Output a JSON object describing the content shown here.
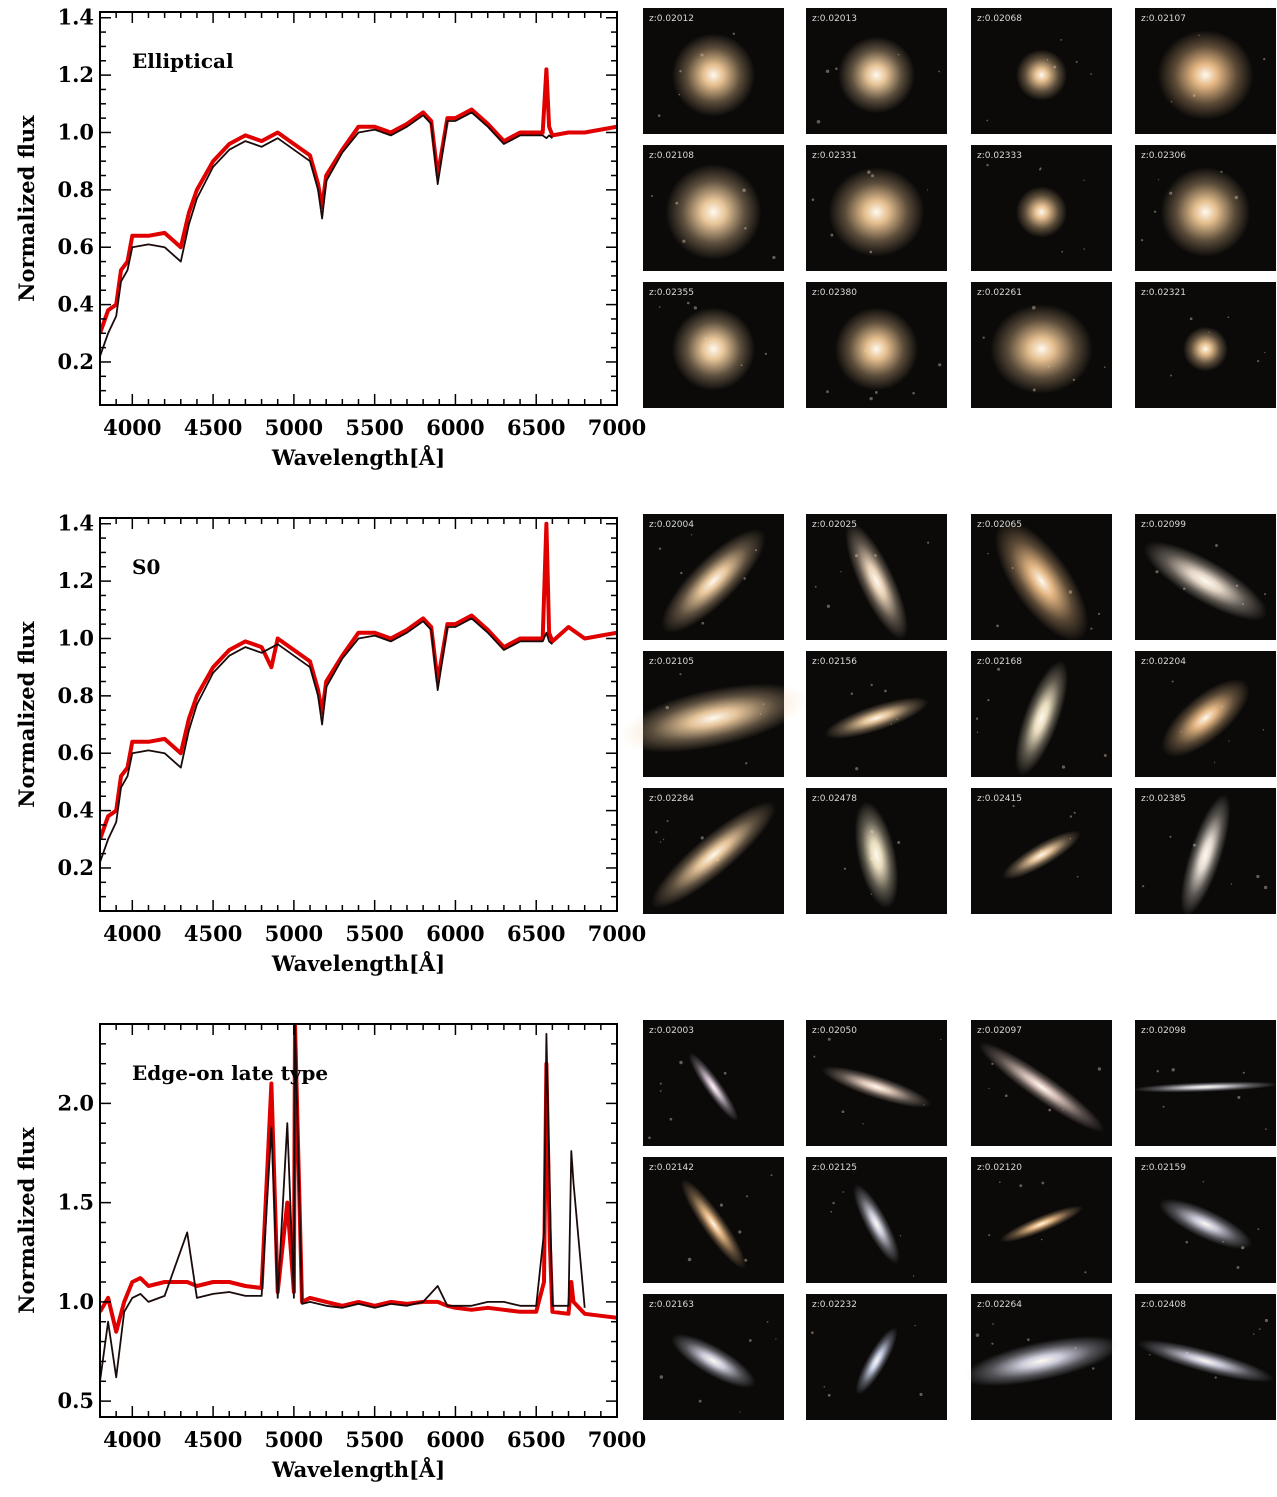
{
  "colors": {
    "series_red": "#e00000",
    "series_black": "#1a0a0a",
    "thumb_bg": "#0b0a09"
  },
  "chart_data": [
    {
      "type": "line",
      "panel_label": "Elliptical",
      "xlabel": "Wavelength[Å]",
      "ylabel": "Normalized flux",
      "xlim": [
        3800,
        7000
      ],
      "ylim": [
        0.05,
        1.42
      ],
      "xticks": [
        4000,
        4500,
        5000,
        5500,
        6000,
        6500,
        7000
      ],
      "yticks": [
        0.2,
        0.4,
        0.6,
        0.8,
        1.0,
        1.2,
        1.4
      ],
      "ytick_labels": [
        "0.2",
        "0.4",
        "0.6",
        "0.8",
        "1.0",
        "1.2",
        "1.4"
      ],
      "series": [
        {
          "color": "#e00000",
          "x": [
            3800,
            3850,
            3900,
            3930,
            3970,
            4000,
            4100,
            4200,
            4300,
            4350,
            4400,
            4500,
            4600,
            4700,
            4800,
            4900,
            5000,
            5100,
            5150,
            5175,
            5200,
            5300,
            5400,
            5500,
            5600,
            5700,
            5800,
            5850,
            5890,
            5950,
            6000,
            6100,
            6200,
            6300,
            6400,
            6500,
            6540,
            6563,
            6580,
            6600,
            6700,
            6800,
            6900,
            7000
          ],
          "y": [
            0.3,
            0.38,
            0.4,
            0.52,
            0.55,
            0.64,
            0.64,
            0.65,
            0.6,
            0.72,
            0.8,
            0.9,
            0.96,
            0.99,
            0.97,
            1.0,
            0.96,
            0.92,
            0.82,
            0.74,
            0.85,
            0.94,
            1.02,
            1.02,
            1.0,
            1.03,
            1.07,
            1.04,
            0.85,
            1.05,
            1.05,
            1.08,
            1.03,
            0.97,
            1.0,
            1.0,
            1.0,
            1.22,
            1.02,
            0.99,
            1.0,
            1.0,
            1.01,
            1.02
          ]
        },
        {
          "color": "#1a0a0a",
          "x": [
            3800,
            3850,
            3900,
            3930,
            3970,
            4000,
            4100,
            4200,
            4300,
            4350,
            4400,
            4500,
            4600,
            4700,
            4800,
            4900,
            5000,
            5100,
            5150,
            5175,
            5200,
            5300,
            5400,
            5500,
            5600,
            5700,
            5800,
            5850,
            5890,
            5950,
            6000,
            6100,
            6200,
            6300,
            6400,
            6500,
            6540,
            6563,
            6580,
            6600
          ],
          "y": [
            0.22,
            0.3,
            0.36,
            0.48,
            0.52,
            0.6,
            0.61,
            0.6,
            0.55,
            0.68,
            0.77,
            0.88,
            0.94,
            0.97,
            0.95,
            0.98,
            0.94,
            0.9,
            0.8,
            0.7,
            0.83,
            0.93,
            1.0,
            1.01,
            0.99,
            1.02,
            1.06,
            1.03,
            0.82,
            1.04,
            1.04,
            1.07,
            1.02,
            0.96,
            0.99,
            0.99,
            0.99,
            0.98,
            0.99,
            0.98
          ]
        }
      ],
      "thumbnails": [
        "z:0.02012",
        "z:0.02013",
        "z:0.02068",
        "z:0.02107",
        "z:0.02108",
        "z:0.02331",
        "z:0.02333",
        "z:0.02306",
        "z:0.02355",
        "z:0.02380",
        "z:0.02261",
        "z:0.02321"
      ]
    },
    {
      "type": "line",
      "panel_label": "S0",
      "xlabel": "Wavelength[Å]",
      "ylabel": "Normalized flux",
      "xlim": [
        3800,
        7000
      ],
      "ylim": [
        0.05,
        1.42
      ],
      "xticks": [
        4000,
        4500,
        5000,
        5500,
        6000,
        6500,
        7000
      ],
      "yticks": [
        0.2,
        0.4,
        0.6,
        0.8,
        1.0,
        1.2,
        1.4
      ],
      "ytick_labels": [
        "0.2",
        "0.4",
        "0.6",
        "0.8",
        "1.0",
        "1.2",
        "1.4"
      ],
      "series": [
        {
          "color": "#e00000",
          "x": [
            3800,
            3850,
            3900,
            3930,
            3970,
            4000,
            4100,
            4200,
            4300,
            4350,
            4400,
            4500,
            4600,
            4700,
            4800,
            4861,
            4900,
            5000,
            5100,
            5150,
            5175,
            5200,
            5300,
            5400,
            5500,
            5600,
            5700,
            5800,
            5850,
            5890,
            5950,
            6000,
            6100,
            6200,
            6300,
            6400,
            6500,
            6540,
            6563,
            6580,
            6600,
            6700,
            6800,
            6900,
            7000
          ],
          "y": [
            0.3,
            0.38,
            0.4,
            0.52,
            0.55,
            0.64,
            0.64,
            0.65,
            0.6,
            0.72,
            0.8,
            0.9,
            0.96,
            0.99,
            0.97,
            0.9,
            1.0,
            0.96,
            0.92,
            0.82,
            0.74,
            0.85,
            0.94,
            1.02,
            1.02,
            1.0,
            1.03,
            1.07,
            1.04,
            0.85,
            1.05,
            1.05,
            1.08,
            1.03,
            0.97,
            1.0,
            1.0,
            1.0,
            1.4,
            1.02,
            0.99,
            1.04,
            1.0,
            1.01,
            1.02
          ]
        },
        {
          "color": "#1a0a0a",
          "x": [
            3800,
            3850,
            3900,
            3930,
            3970,
            4000,
            4100,
            4200,
            4300,
            4350,
            4400,
            4500,
            4600,
            4700,
            4800,
            4900,
            5000,
            5100,
            5150,
            5175,
            5200,
            5300,
            5400,
            5500,
            5600,
            5700,
            5800,
            5850,
            5890,
            5950,
            6000,
            6100,
            6200,
            6300,
            6400,
            6500,
            6540,
            6563,
            6580,
            6600
          ],
          "y": [
            0.22,
            0.3,
            0.36,
            0.48,
            0.52,
            0.6,
            0.61,
            0.6,
            0.55,
            0.68,
            0.77,
            0.88,
            0.94,
            0.97,
            0.95,
            0.98,
            0.94,
            0.9,
            0.8,
            0.7,
            0.83,
            0.93,
            1.0,
            1.01,
            0.99,
            1.02,
            1.06,
            1.03,
            0.82,
            1.04,
            1.04,
            1.07,
            1.02,
            0.96,
            0.99,
            0.99,
            0.99,
            1.02,
            0.99,
            0.98
          ]
        }
      ],
      "thumbnails": [
        "z:0.02004",
        "z:0.02025",
        "z:0.02065",
        "z:0.02099",
        "z:0.02105",
        "z:0.02156",
        "z:0.02168",
        "z:0.02204",
        "z:0.02284",
        "z:0.02478",
        "z:0.02415",
        "z:0.02385"
      ]
    },
    {
      "type": "line",
      "panel_label": "Edge-on late type",
      "xlabel": "Wavelength[Å]",
      "ylabel": "Normalized flux",
      "xlim": [
        3800,
        7000
      ],
      "ylim": [
        0.42,
        2.4
      ],
      "xticks": [
        4000,
        4500,
        5000,
        5500,
        6000,
        6500,
        7000
      ],
      "yticks": [
        0.5,
        1.0,
        1.5,
        2.0
      ],
      "ytick_labels": [
        "0.5",
        "1.0",
        "1.5",
        "2.0"
      ],
      "series": [
        {
          "color": "#e00000",
          "x": [
            3800,
            3850,
            3900,
            3950,
            4000,
            4050,
            4100,
            4200,
            4340,
            4400,
            4500,
            4600,
            4700,
            4800,
            4861,
            4900,
            4959,
            5000,
            5007,
            5050,
            5100,
            5200,
            5300,
            5400,
            5500,
            5600,
            5700,
            5800,
            5890,
            5950,
            6000,
            6100,
            6200,
            6300,
            6400,
            6500,
            6548,
            6563,
            6584,
            6600,
            6700,
            6717,
            6731,
            6800,
            6900,
            7000
          ],
          "y": [
            0.95,
            1.02,
            0.85,
            1.0,
            1.1,
            1.12,
            1.08,
            1.1,
            1.1,
            1.08,
            1.1,
            1.1,
            1.08,
            1.07,
            2.1,
            1.05,
            1.5,
            1.05,
            2.4,
            1.0,
            1.02,
            1.0,
            0.98,
            1.0,
            0.98,
            1.0,
            0.99,
            1.0,
            1.0,
            0.98,
            0.97,
            0.96,
            0.97,
            0.96,
            0.95,
            0.95,
            1.1,
            2.2,
            1.3,
            0.95,
            0.94,
            1.1,
            1.0,
            0.94,
            0.93,
            0.92
          ]
        },
        {
          "color": "#1a0a0a",
          "x": [
            3800,
            3850,
            3900,
            3950,
            4000,
            4050,
            4100,
            4200,
            4340,
            4400,
            4500,
            4600,
            4700,
            4800,
            4861,
            4900,
            4959,
            5000,
            5007,
            5050,
            5100,
            5200,
            5300,
            5400,
            5500,
            5600,
            5700,
            5800,
            5890,
            5950,
            6000,
            6100,
            6200,
            6300,
            6400,
            6500,
            6548,
            6563,
            6584,
            6600,
            6700,
            6717,
            6731,
            6800
          ],
          "y": [
            0.6,
            0.9,
            0.62,
            0.95,
            1.02,
            1.04,
            1.0,
            1.03,
            1.35,
            1.02,
            1.04,
            1.05,
            1.03,
            1.03,
            1.88,
            1.02,
            1.9,
            1.02,
            2.4,
            0.99,
            1.0,
            0.98,
            0.97,
            0.99,
            0.97,
            0.99,
            0.98,
            1.0,
            1.08,
            0.98,
            0.98,
            0.98,
            1.0,
            1.0,
            0.98,
            0.98,
            1.35,
            2.35,
            1.55,
            0.98,
            0.98,
            1.76,
            1.6,
            0.97
          ]
        }
      ],
      "thumbnails": [
        "z:0.02003",
        "z:0.02050",
        "z:0.02097",
        "z:0.02098",
        "z:0.02142",
        "z:0.02125",
        "z:0.02120",
        "z:0.02159",
        "z:0.02163",
        "z:0.02232",
        "z:0.02264",
        "z:0.02408"
      ]
    }
  ]
}
